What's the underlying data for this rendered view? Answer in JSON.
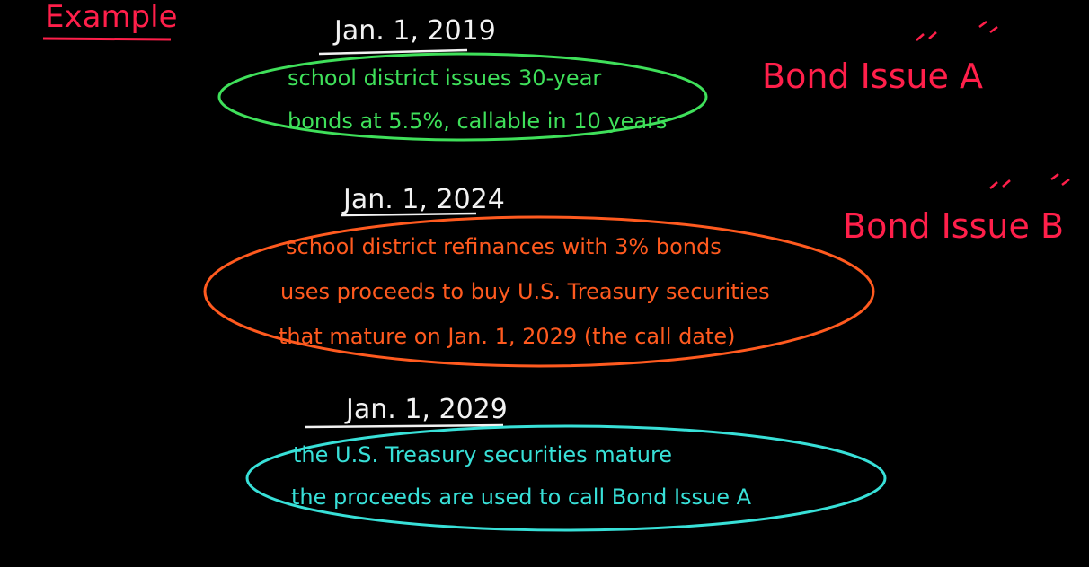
{
  "heading": "Example",
  "events": [
    {
      "date": "Jan. 1, 2019",
      "lines": [
        "school district issues 30-year",
        "bonds at 5.5%, callable in 10 years"
      ],
      "color": "#3fe05a"
    },
    {
      "date": "Jan. 1, 2024",
      "lines": [
        "school district refinances with 3% bonds",
        "uses proceeds to buy U.S. Treasury securities",
        "that mature on Jan. 1, 2029 (the call date)"
      ],
      "color": "#ff5a1f"
    },
    {
      "date": "Jan. 1, 2029",
      "lines": [
        "the U.S. Treasury securities mature",
        "the proceeds are used to call Bond Issue A"
      ],
      "color": "#38e0d8"
    }
  ],
  "labels": {
    "bond_a": "Bond Issue A",
    "bond_b": "Bond Issue B"
  },
  "colors": {
    "background": "#000000",
    "heading": "#ff1f4a",
    "date": "#f2f2f2",
    "labels": "#ff1f4a"
  }
}
